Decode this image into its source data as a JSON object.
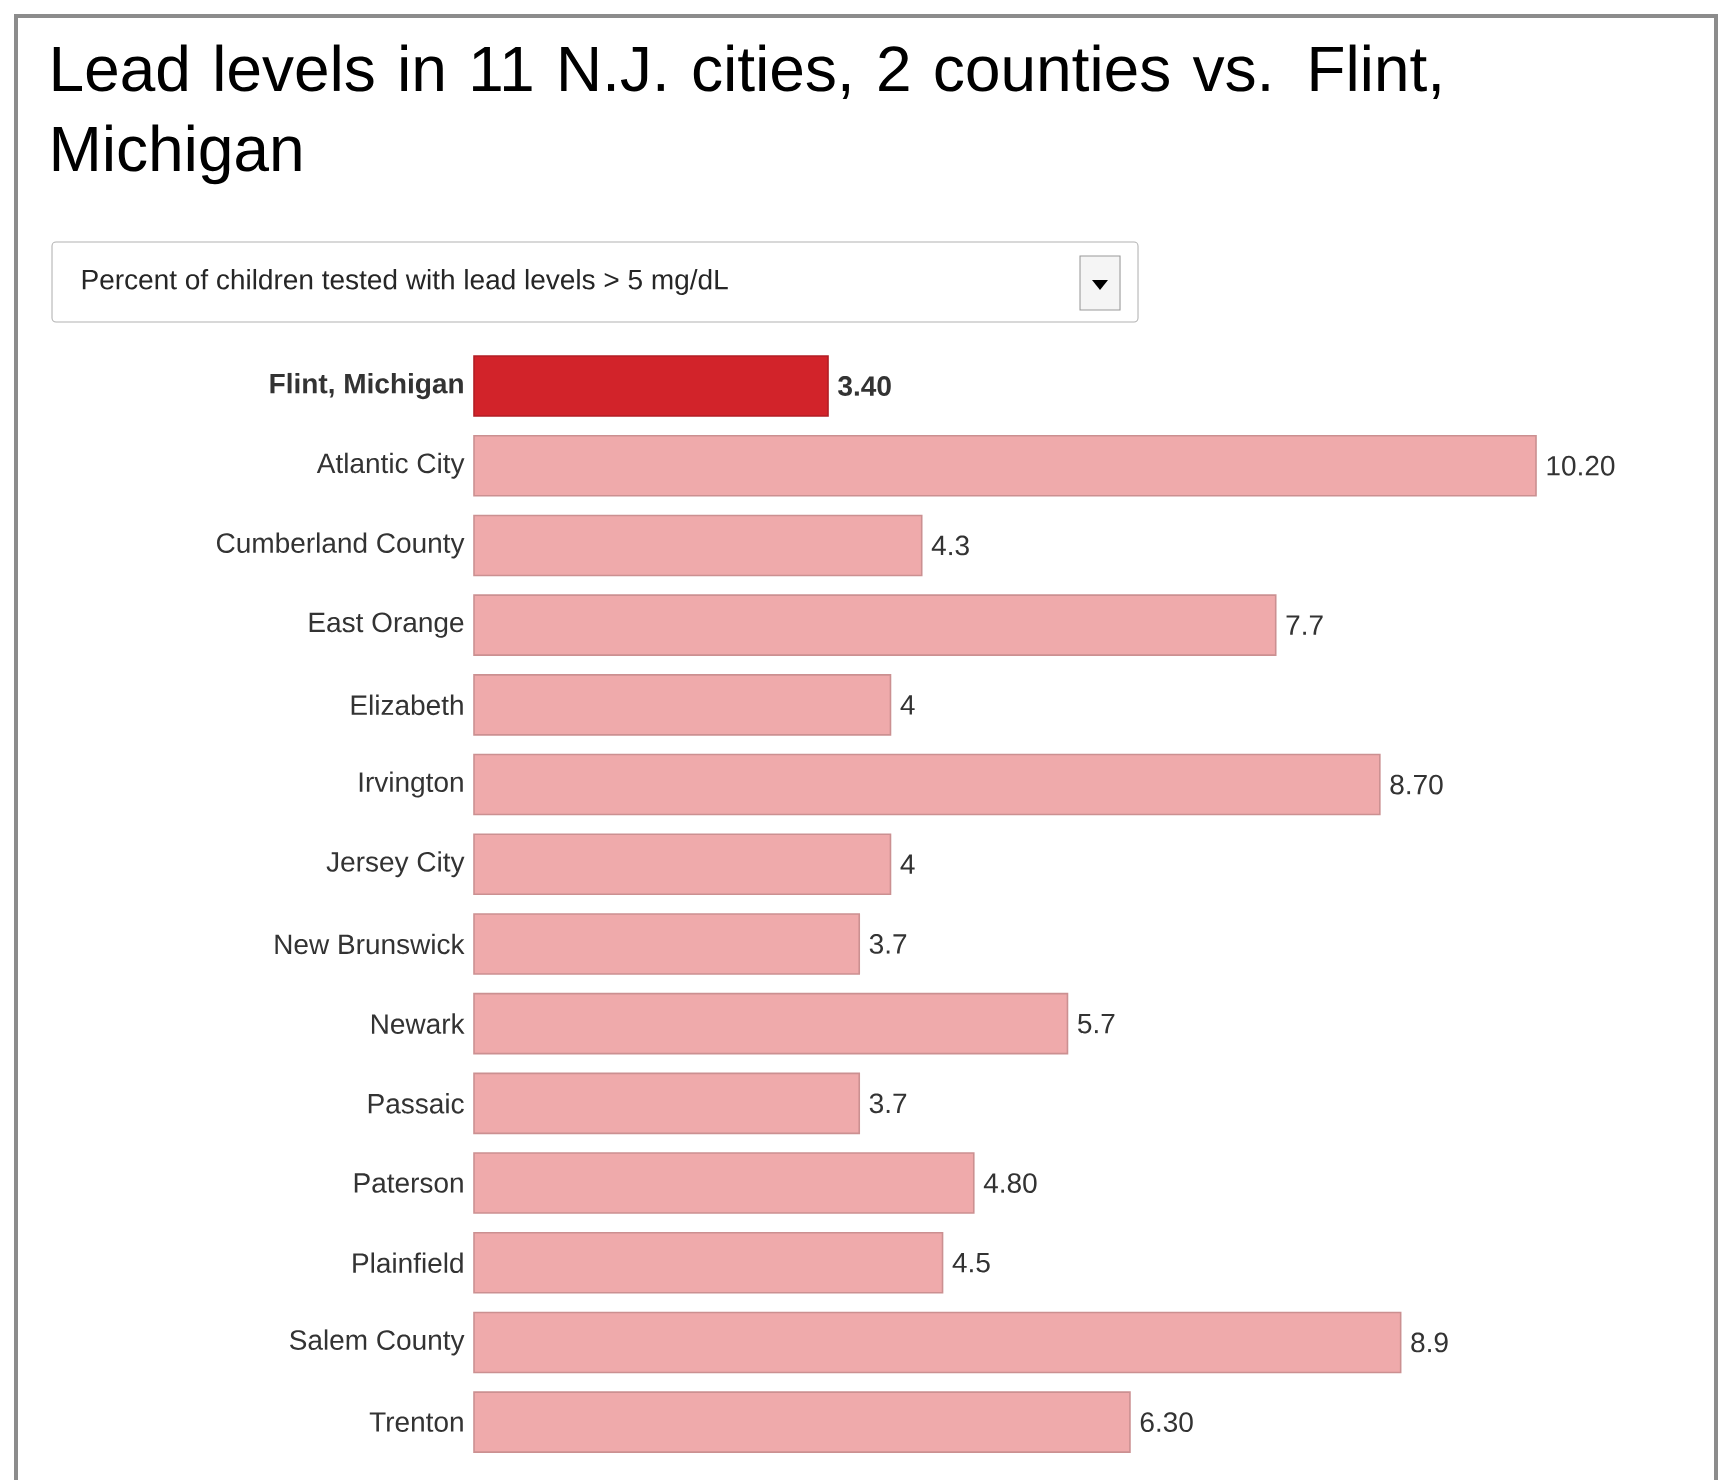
{
  "chart_data": {
    "type": "bar",
    "orientation": "horizontal",
    "title": "Lead levels in 11 N.J. cities, 2 counties vs. Flint, Michigan",
    "subtitle": "Percent of children tested with lead levels > 5 mg/dL",
    "categories": [
      "Flint, Michigan",
      "Atlantic City",
      "Cumberland County",
      "East Orange",
      "Elizabeth",
      "Irvington",
      "Jersey City",
      "New Brunswick",
      "Newark",
      "Passaic",
      "Paterson",
      "Plainfield",
      "Salem County",
      "Trenton"
    ],
    "values": [
      3.4,
      10.2,
      4.3,
      7.7,
      4,
      8.7,
      4,
      3.7,
      5.7,
      3.7,
      4.8,
      4.5,
      8.9,
      6.3
    ],
    "value_labels": [
      "3.40",
      "10.20",
      "4.3",
      "7.7",
      "4",
      "8.70",
      "4",
      "3.7",
      "5.7",
      "3.7",
      "4.80",
      "4.5",
      "8.9",
      "6.30"
    ],
    "colors": [
      "#d2232a",
      "#efaaab",
      "#efaaab",
      "#efaaab",
      "#efaaab",
      "#efaaab",
      "#efaaab",
      "#efaaab",
      "#efaaab",
      "#efaaab",
      "#efaaab",
      "#efaaab",
      "#efaaab",
      "#efaaab"
    ]
  }
}
